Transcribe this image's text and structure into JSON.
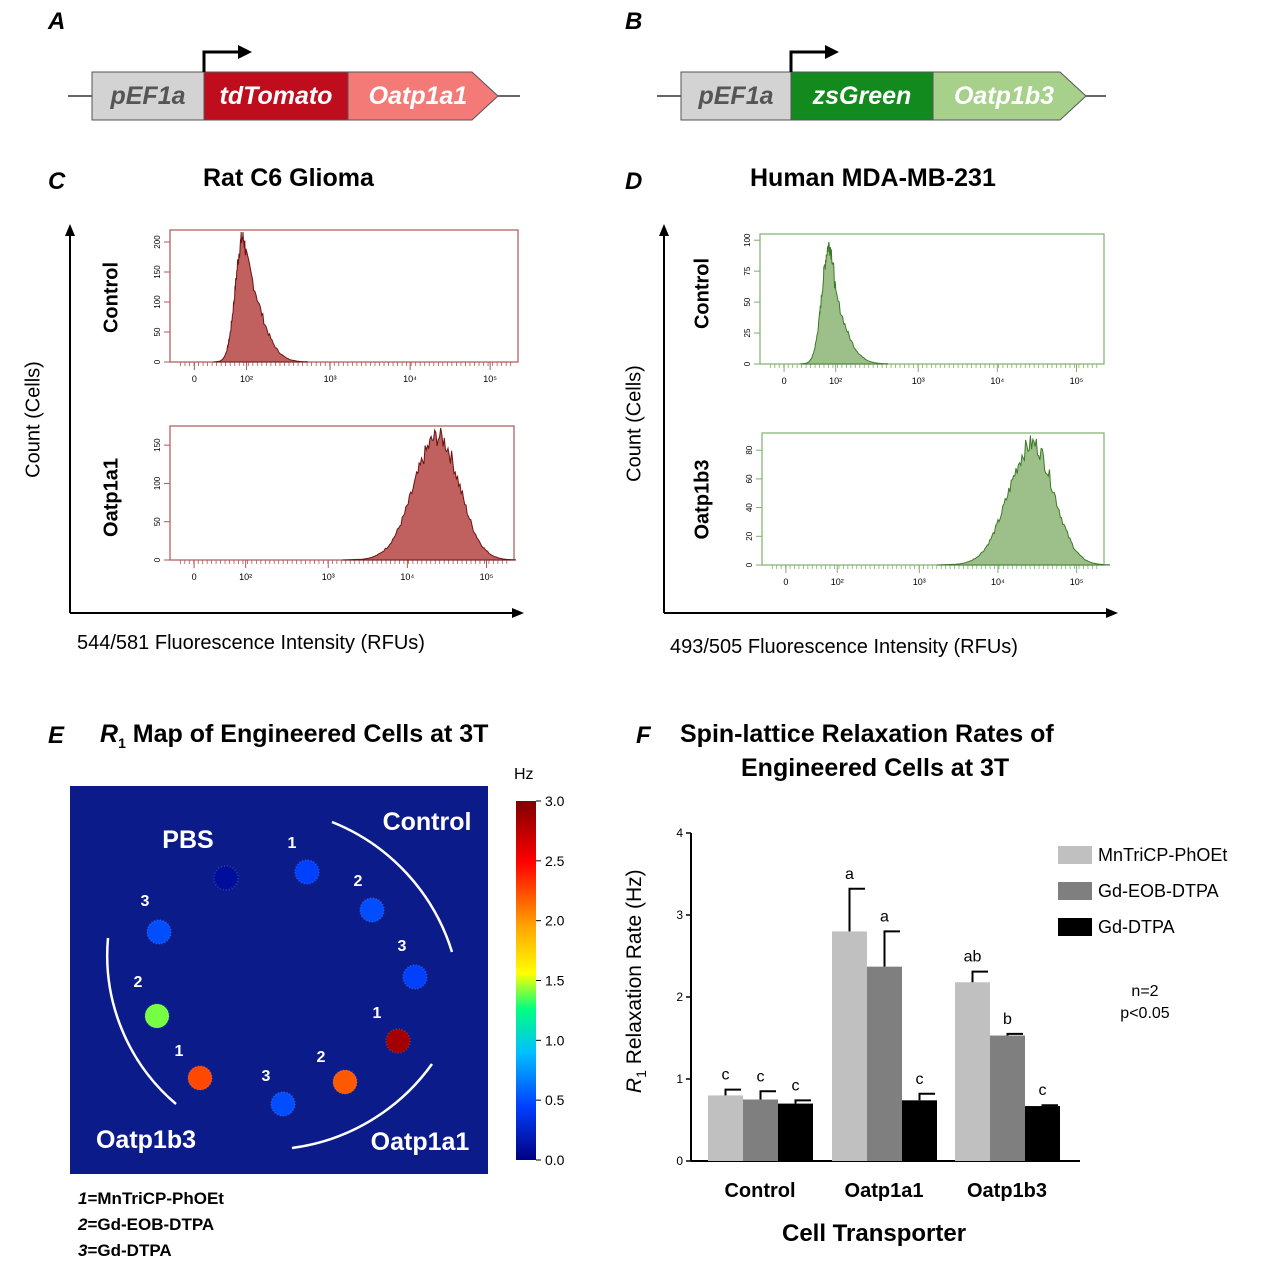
{
  "panels": {
    "a": "A",
    "b": "B",
    "c": "C",
    "d": "D",
    "e": "E",
    "f": "F"
  },
  "constructs": {
    "a": {
      "promoter": "pEF1a",
      "reporter": "tdTomato",
      "transporter": "Oatp1a1",
      "colors": {
        "promoter": "#d3d3d3",
        "reporter": "#c00d1e",
        "transporter": "#f47a78"
      }
    },
    "b": {
      "promoter": "pEF1a",
      "reporter": "zsGreen",
      "transporter": "Oatp1b3",
      "colors": {
        "promoter": "#d3d3d3",
        "reporter": "#138a1e",
        "transporter": "#a7d08b"
      }
    }
  },
  "flow": {
    "c": {
      "title": "Rat C6 Glioma",
      "ylabel": "Count (Cells)",
      "xlabel": "544/581 Fluorescence Intensity (RFUs)",
      "fill": "#c0605f",
      "stroke": "#6b1414",
      "frame": "#b05555",
      "xticks": [
        "0",
        "10²",
        "10³",
        "10⁴",
        "10⁵"
      ],
      "plots": [
        {
          "label": "Control",
          "yticks": [
            "0",
            "50",
            "100",
            "150",
            "200"
          ],
          "ymax": 220,
          "peak_log": 1.85,
          "width": 0.28,
          "height": 215
        },
        {
          "label": "Oatp1a1",
          "yticks": [
            "0",
            "50",
            "100",
            "150"
          ],
          "ymax": 175,
          "peak_log": 4.4,
          "width": 0.3,
          "height": 168
        }
      ]
    },
    "d": {
      "title": "Human MDA-MB-231",
      "ylabel": "Count (Cells)",
      "xlabel": "493/505 Fluorescence Intensity (RFUs)",
      "fill": "#9dc08b",
      "stroke": "#3d7a2a",
      "frame": "#7fb06a",
      "xticks": [
        "0",
        "10²",
        "10³",
        "10⁴",
        "10⁵"
      ],
      "plots": [
        {
          "label": "Control",
          "yticks": [
            "0",
            "25",
            "50",
            "75",
            "100"
          ],
          "ymax": 105,
          "peak_log": 1.75,
          "width": 0.28,
          "height": 100
        },
        {
          "label": "Oatp1b3",
          "yticks": [
            "0",
            "20",
            "40",
            "60",
            "80"
          ],
          "ymax": 92,
          "peak_log": 4.45,
          "width": 0.3,
          "height": 88
        }
      ]
    }
  },
  "r1map": {
    "title_r": "R",
    "title_sub": "1",
    "title_rest": " Map of Engineered Cells at 3T",
    "colorbar_unit": "Hz",
    "colorbar_ticks": [
      "3.0",
      "2.5",
      "2.0",
      "1.5",
      "1.0",
      "0.5",
      "0.0"
    ],
    "background": "#0b1b8a",
    "groups": {
      "pbs": "PBS",
      "control": "Control",
      "oatp1a1": "Oatp1a1",
      "oatp1b3": "Oatp1b3"
    },
    "samples": [
      {
        "group": "PBS",
        "num": "",
        "hz": 0.1
      },
      {
        "group": "Control",
        "num": "1",
        "hz": 0.45
      },
      {
        "group": "Control",
        "num": "2",
        "hz": 0.5
      },
      {
        "group": "Control",
        "num": "3",
        "hz": 0.45
      },
      {
        "group": "Oatp1a1",
        "num": "1",
        "hz": 2.85
      },
      {
        "group": "Oatp1a1",
        "num": "2",
        "hz": 2.2
      },
      {
        "group": "Oatp1a1",
        "num": "3",
        "hz": 0.5
      },
      {
        "group": "Oatp1b3",
        "num": "1",
        "hz": 2.25
      },
      {
        "group": "Oatp1b3",
        "num": "2",
        "hz": 1.4
      },
      {
        "group": "Oatp1b3",
        "num": "3",
        "hz": 0.5
      }
    ],
    "key": [
      {
        "num": "1",
        "name": "=MnTriCP-PhOEt"
      },
      {
        "num": "2",
        "name": "=Gd-EOB-DTPA"
      },
      {
        "num": "3",
        "name": "=Gd-DTPA"
      }
    ]
  },
  "chart_data": {
    "type": "bar",
    "title_line1": "Spin-lattice Relaxation Rates of",
    "title_line2": "Engineered Cells at 3T",
    "xlabel": "Cell Transporter",
    "ylabel_r": "R",
    "ylabel_sub": "1",
    "ylabel_rest": " Relaxation Rate (Hz)",
    "ylim": [
      0,
      4
    ],
    "yticks": [
      "0",
      "1",
      "2",
      "3",
      "4"
    ],
    "categories": [
      "Control",
      "Oatp1a1",
      "Oatp1b3"
    ],
    "series": [
      {
        "name": "MnTriCP-PhOEt",
        "color": "#c0c0c0",
        "values": [
          0.8,
          2.8,
          2.18
        ],
        "errors": [
          0.07,
          0.52,
          0.13
        ],
        "letters": [
          "c",
          "a",
          "ab"
        ]
      },
      {
        "name": "Gd-EOB-DTPA",
        "color": "#7f7f7f",
        "values": [
          0.75,
          2.37,
          1.53
        ],
        "errors": [
          0.1,
          0.43,
          0.02
        ],
        "letters": [
          "c",
          "a",
          "b"
        ]
      },
      {
        "name": "Gd-DTPA",
        "color": "#000000",
        "values": [
          0.7,
          0.74,
          0.67
        ],
        "errors": [
          0.04,
          0.08,
          0.01
        ],
        "letters": [
          "c",
          "c",
          "c"
        ]
      }
    ],
    "notes": [
      "n=2",
      "p<0.05"
    ],
    "legend_position": "top-right"
  }
}
